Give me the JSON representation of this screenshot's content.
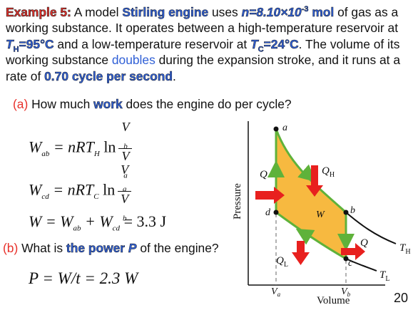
{
  "problem": {
    "example_label": "Example 5:",
    "text1": " A model ",
    "engine": "Stirling engine",
    "text2": " uses ",
    "n_value": "n=8.10×10",
    "n_exp": "-3",
    "n_unit": " mol",
    "text3": " of gas as a working substance. It operates between a high-temperature reservoir at ",
    "th_T": "T",
    "th_sub": "H",
    "th_val": "=95°C",
    "text4": " and a low-temperature reservoir at ",
    "tc_T": "T",
    "tc_sub": "C",
    "tc_val": "=24°C",
    "text5": ". The volume of its working substance ",
    "doubles": "doubles",
    "text6": " during the expansion stroke, and it runs at a rate of ",
    "rate": "0.70 cycle per second",
    "text7": "."
  },
  "part_a": {
    "label": "(a)",
    "text1": " How much ",
    "keyword": "work",
    "text2": " does the engine do per cycle?"
  },
  "part_b": {
    "label": "(b)",
    "text1": " What is ",
    "keyword": "the power ",
    "keyword_var": "P",
    "text2": " of the engine?"
  },
  "equations": {
    "wab_lhs": "W",
    "wab_sub": "ab",
    "wab_rhs": " = nRT",
    "wab_rhs_sub": "H",
    "ln": " ln",
    "wab_num": "V",
    "wab_num_sub": "b",
    "wab_den": "V",
    "wab_den_sub": "a",
    "wcd_lhs": "W",
    "wcd_sub": "cd",
    "wcd_rhs": " = nRT",
    "wcd_rhs_sub": "C",
    "wcd_num": "V",
    "wcd_num_sub": "a",
    "wcd_den": "V",
    "wcd_den_sub": "b",
    "w_total": "W = W",
    "w_total_sub1": "ab",
    "w_total_mid": " + W",
    "w_total_sub2": "cd",
    "w_total_result": " = 3.3 J",
    "power": "P = W/t = 2.3 W"
  },
  "diagram": {
    "ylabel": "Pressure",
    "xlabel": "Volume",
    "point_a": "a",
    "point_b": "b",
    "point_c": "c",
    "point_d": "d",
    "q": "Q",
    "qh": "Q",
    "qh_sub": "H",
    "ql": "Q",
    "ql_sub": "L",
    "w": "W",
    "th": "T",
    "th_sub": "H",
    "tl": "T",
    "tl_sub": "L",
    "va": "V",
    "va_sub": "a",
    "vb": "V",
    "vb_sub": "b",
    "colors": {
      "fill": "#f7b940",
      "cycle_path": "#5fb23a",
      "arrow": "#e8201e"
    }
  },
  "page_number": "20"
}
